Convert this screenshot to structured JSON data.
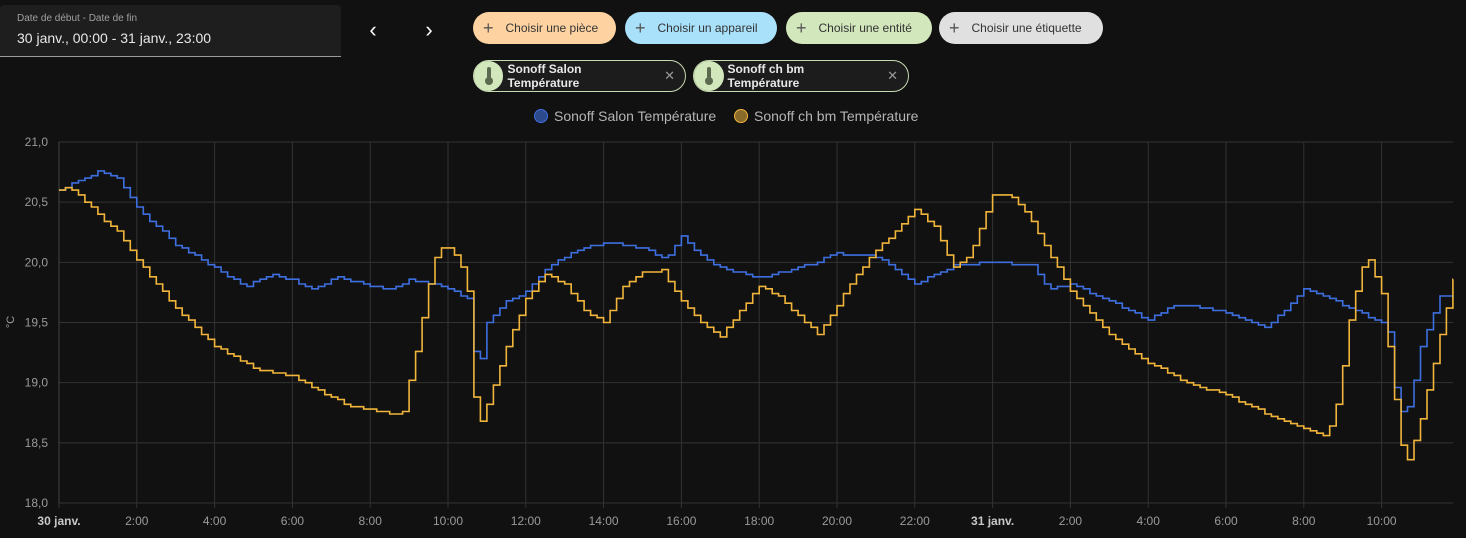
{
  "date_picker": {
    "label": "Date de début - Date de fin",
    "value": "30 janv., 00:00 - 31 janv., 23:00"
  },
  "nav": {
    "prev": "‹",
    "next": "›"
  },
  "pickers": [
    {
      "label": "Choisir une pièce",
      "color": "#ffd3a1"
    },
    {
      "label": "Choisir un appareil",
      "color": "#a9e1fb"
    },
    {
      "label": "Choisir une entité",
      "color": "#d2e7bc"
    },
    {
      "label": "Choisir une étiquette",
      "color": "#e0e0e0"
    }
  ],
  "entities": [
    {
      "label": "Sonoff Salon Température",
      "icon": "thermometer-icon"
    },
    {
      "label": "Sonoff ch bm Température",
      "icon": "thermometer-icon"
    }
  ],
  "chart_data": {
    "type": "line",
    "ylabel": "°C",
    "ylim": [
      18.0,
      21.0
    ],
    "yticks": [
      "18,0",
      "18,5",
      "19,0",
      "19,5",
      "20,0",
      "20,5",
      "21,0"
    ],
    "xlim_hours": [
      0,
      35.85
    ],
    "xticks": [
      {
        "h": 0,
        "label": "30 janv.",
        "bold": true
      },
      {
        "h": 2,
        "label": "2:00"
      },
      {
        "h": 4,
        "label": "4:00"
      },
      {
        "h": 6,
        "label": "6:00"
      },
      {
        "h": 8,
        "label": "8:00"
      },
      {
        "h": 10,
        "label": "10:00"
      },
      {
        "h": 12,
        "label": "12:00"
      },
      {
        "h": 14,
        "label": "14:00"
      },
      {
        "h": 16,
        "label": "16:00"
      },
      {
        "h": 18,
        "label": "18:00"
      },
      {
        "h": 20,
        "label": "20:00"
      },
      {
        "h": 22,
        "label": "22:00"
      },
      {
        "h": 24,
        "label": "31 janv.",
        "bold": true
      },
      {
        "h": 26,
        "label": "2:00"
      },
      {
        "h": 28,
        "label": "4:00"
      },
      {
        "h": 30,
        "label": "6:00"
      },
      {
        "h": 32,
        "label": "8:00"
      },
      {
        "h": 34,
        "label": "10:00"
      }
    ],
    "series": [
      {
        "name": "Sonoff Salon Température",
        "color": "#3e6fe0",
        "legend_fill": "#2c4a8c",
        "points": [
          [
            0,
            20.6
          ],
          [
            0.5,
            20.68
          ],
          [
            1,
            20.75
          ],
          [
            1.5,
            20.7
          ],
          [
            2,
            20.45
          ],
          [
            3,
            20.15
          ],
          [
            4,
            19.95
          ],
          [
            4.8,
            19.8
          ],
          [
            5.4,
            19.9
          ],
          [
            6,
            19.85
          ],
          [
            6.5,
            19.78
          ],
          [
            7.2,
            19.88
          ],
          [
            8,
            19.8
          ],
          [
            8.5,
            19.77
          ],
          [
            9,
            19.85
          ],
          [
            9.5,
            19.83
          ],
          [
            10,
            19.78
          ],
          [
            10.5,
            19.7
          ],
          [
            10.6,
            19.3
          ],
          [
            10.8,
            19.15
          ],
          [
            11,
            19.5
          ],
          [
            11.5,
            19.68
          ],
          [
            12,
            19.75
          ],
          [
            12.5,
            19.95
          ],
          [
            13,
            20.05
          ],
          [
            14,
            20.17
          ],
          [
            15,
            20.12
          ],
          [
            15.6,
            20.02
          ],
          [
            16,
            20.22
          ],
          [
            16.5,
            20.05
          ],
          [
            17,
            19.95
          ],
          [
            18,
            19.87
          ],
          [
            19,
            19.95
          ],
          [
            20,
            20.07
          ],
          [
            21,
            20.05
          ],
          [
            21.5,
            19.95
          ],
          [
            22,
            19.82
          ],
          [
            22.5,
            19.9
          ],
          [
            23,
            19.97
          ],
          [
            24,
            20.0
          ],
          [
            25,
            19.98
          ],
          [
            25.4,
            19.78
          ],
          [
            26,
            19.82
          ],
          [
            27,
            19.68
          ],
          [
            28,
            19.52
          ],
          [
            28.5,
            19.62
          ],
          [
            29,
            19.65
          ],
          [
            30,
            19.58
          ],
          [
            31,
            19.45
          ],
          [
            31.5,
            19.6
          ],
          [
            32,
            19.78
          ],
          [
            33,
            19.65
          ],
          [
            34,
            19.5
          ],
          [
            34.2,
            19.4
          ],
          [
            34.4,
            18.75
          ],
          [
            34.7,
            18.8
          ],
          [
            35,
            19.3
          ],
          [
            35.5,
            19.72
          ],
          [
            35.85,
            19.7
          ]
        ]
      },
      {
        "name": "Sonoff ch bm Température",
        "color": "#f1b53b",
        "legend_fill": "#8a6a2a",
        "points": [
          [
            0,
            20.6
          ],
          [
            0.2,
            20.63
          ],
          [
            0.5,
            20.55
          ],
          [
            1,
            20.4
          ],
          [
            1.5,
            20.25
          ],
          [
            2,
            20.02
          ],
          [
            3,
            19.62
          ],
          [
            4,
            19.3
          ],
          [
            5,
            19.12
          ],
          [
            6,
            19.05
          ],
          [
            7,
            18.88
          ],
          [
            7.5,
            18.8
          ],
          [
            8,
            18.78
          ],
          [
            8.8,
            18.72
          ],
          [
            9.2,
            19.3
          ],
          [
            9.6,
            20.0
          ],
          [
            9.9,
            20.15
          ],
          [
            10.3,
            20.0
          ],
          [
            10.5,
            19.75
          ],
          [
            10.6,
            19.1
          ],
          [
            10.75,
            18.6
          ],
          [
            11,
            18.82
          ],
          [
            11.5,
            19.3
          ],
          [
            12,
            19.7
          ],
          [
            12.5,
            19.9
          ],
          [
            13,
            19.82
          ],
          [
            13.5,
            19.6
          ],
          [
            14,
            19.5
          ],
          [
            14.5,
            19.8
          ],
          [
            15,
            19.92
          ],
          [
            15.5,
            19.93
          ],
          [
            16,
            19.67
          ],
          [
            16.5,
            19.5
          ],
          [
            17,
            19.38
          ],
          [
            17.5,
            19.6
          ],
          [
            18,
            19.8
          ],
          [
            18.5,
            19.72
          ],
          [
            19,
            19.55
          ],
          [
            19.5,
            19.4
          ],
          [
            20,
            19.65
          ],
          [
            20.5,
            19.9
          ],
          [
            21,
            20.1
          ],
          [
            21.5,
            20.25
          ],
          [
            22,
            20.45
          ],
          [
            22.5,
            20.3
          ],
          [
            23,
            19.95
          ],
          [
            23.4,
            20.05
          ],
          [
            24,
            20.55
          ],
          [
            24.5,
            20.55
          ],
          [
            25,
            20.35
          ],
          [
            25.5,
            20.05
          ],
          [
            26,
            19.77
          ],
          [
            27,
            19.4
          ],
          [
            28,
            19.17
          ],
          [
            29,
            19.0
          ],
          [
            30,
            18.9
          ],
          [
            31,
            18.75
          ],
          [
            32,
            18.62
          ],
          [
            32.6,
            18.56
          ],
          [
            32.9,
            18.9
          ],
          [
            33.2,
            19.6
          ],
          [
            33.6,
            20.07
          ],
          [
            34,
            19.75
          ],
          [
            34.2,
            19.2
          ],
          [
            34.4,
            18.7
          ],
          [
            34.6,
            18.28
          ],
          [
            35,
            18.7
          ],
          [
            35.5,
            19.4
          ],
          [
            35.85,
            19.88
          ]
        ]
      }
    ]
  }
}
